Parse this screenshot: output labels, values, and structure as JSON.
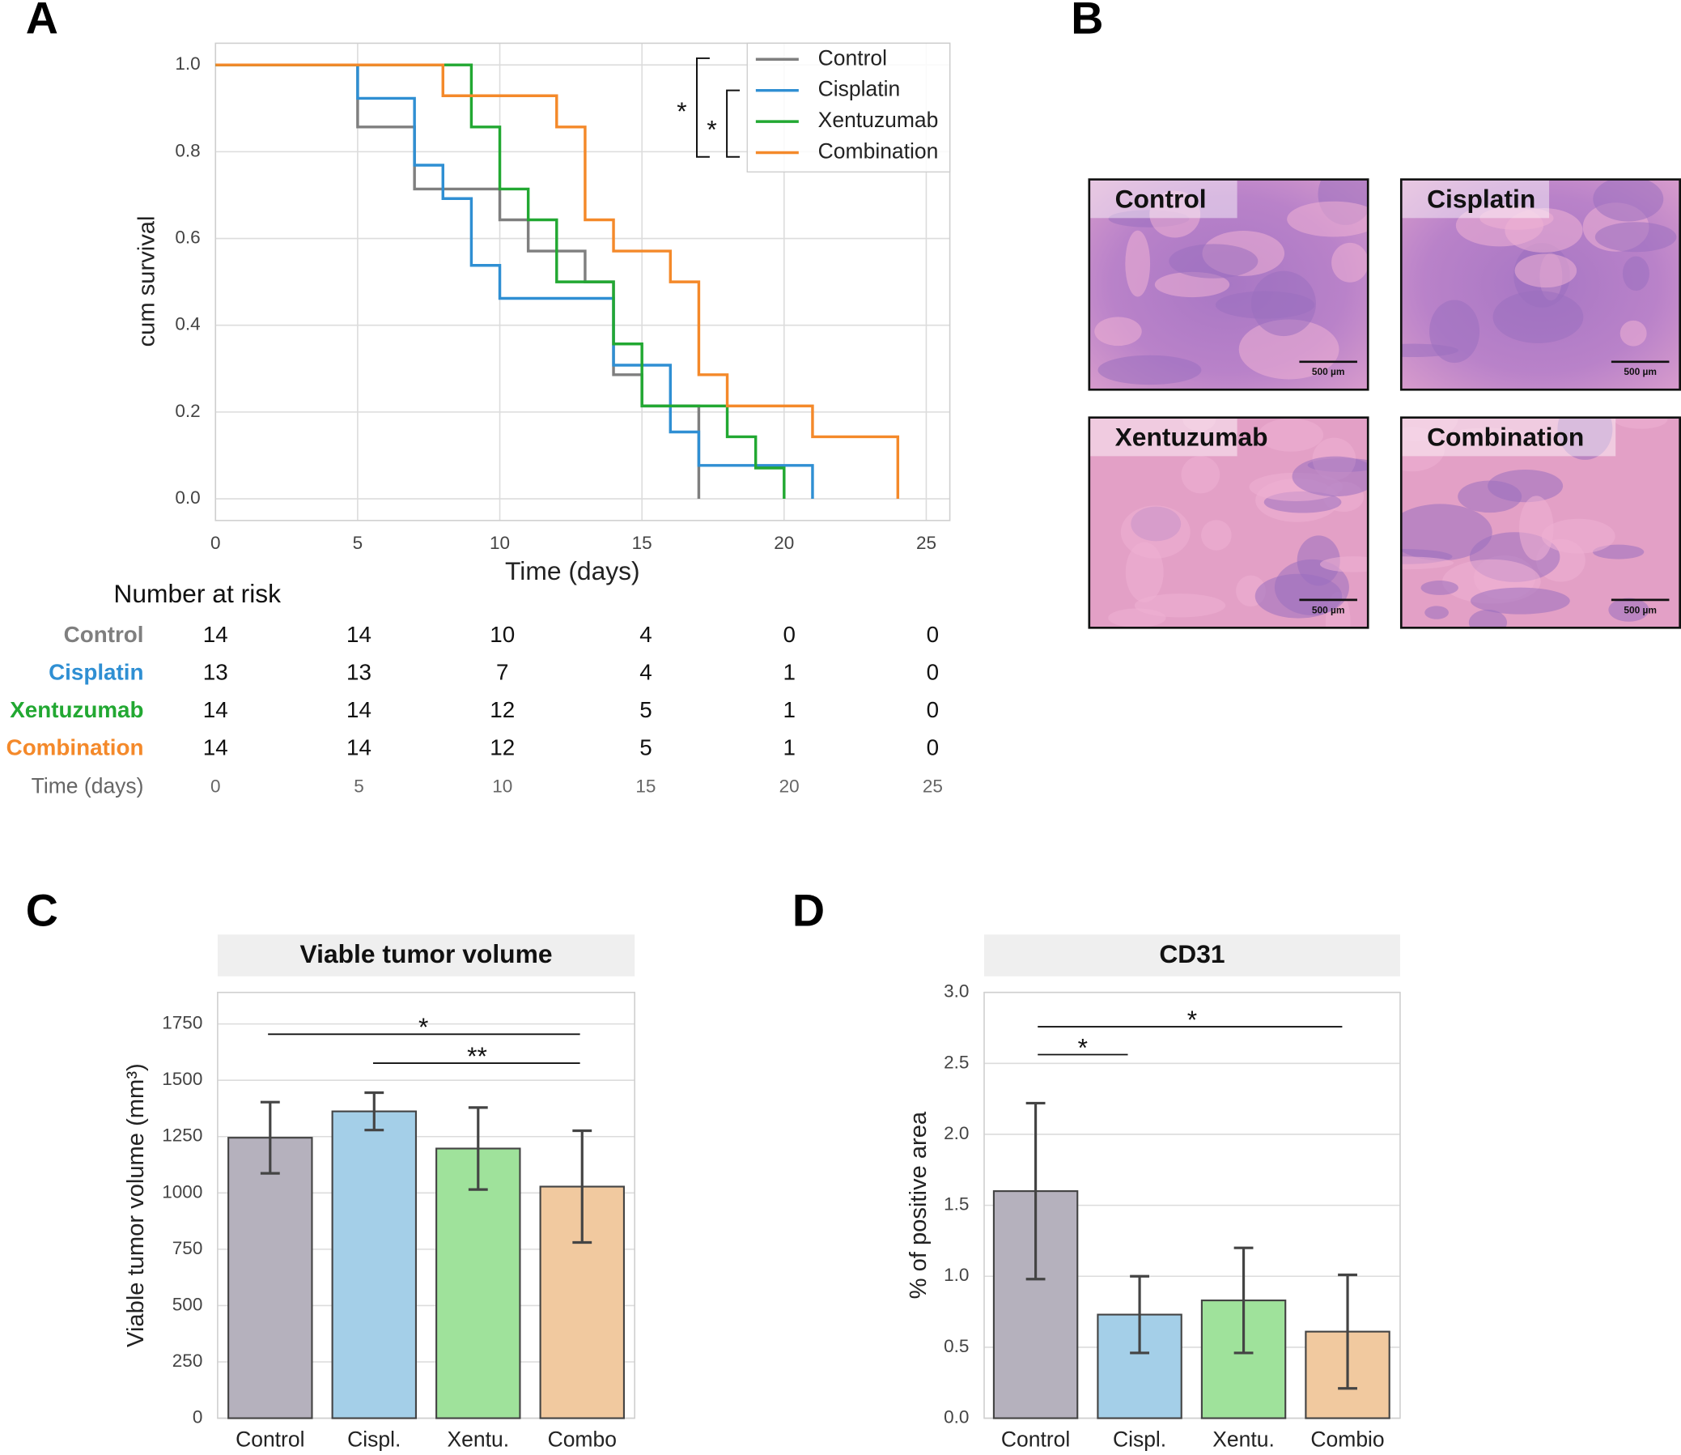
{
  "chart_data": [
    {
      "panel": "A",
      "type": "step",
      "xlabel": "Time (days)",
      "ylabel": "cum survival",
      "xlim": [
        0,
        25.83
      ],
      "ylim": [
        -0.05,
        1.05
      ],
      "xticks": [
        0,
        5,
        10,
        15,
        20,
        25
      ],
      "yticks": [
        {
          "value": 0,
          "label": "0.0"
        },
        {
          "value": 0.2,
          "label": "0.2"
        },
        {
          "value": 0.4,
          "label": "0.4"
        },
        {
          "value": 0.6,
          "label": "0.6"
        },
        {
          "value": 0.8,
          "label": "0.8"
        },
        {
          "value": 1,
          "label": "1.0"
        }
      ],
      "grid": true,
      "legend": "upper right",
      "annotations": [
        "*",
        "*"
      ],
      "risk_table_title": "Number at risk",
      "series": [
        {
          "name": "Control",
          "color": "#7f7f7f",
          "x": [
            0,
            5,
            7,
            10,
            11,
            13,
            14,
            15,
            17
          ],
          "values": [
            1,
            0.857,
            0.714,
            0.643,
            0.571,
            0.5,
            0.286,
            0.214,
            0
          ],
          "at_risk": [
            14,
            14,
            10,
            4,
            0,
            0
          ]
        },
        {
          "name": "Cisplatin",
          "color": "#2f8fd3",
          "x": [
            0,
            5,
            7,
            8,
            9,
            10,
            14,
            16,
            17,
            21
          ],
          "values": [
            1,
            0.923,
            0.769,
            0.692,
            0.538,
            0.462,
            0.308,
            0.154,
            0.077,
            0
          ],
          "at_risk": [
            13,
            13,
            7,
            4,
            1,
            0
          ]
        },
        {
          "name": "Xentuzumab",
          "color": "#22a832",
          "x": [
            0,
            9,
            10,
            11,
            12,
            14,
            15,
            18,
            19,
            20
          ],
          "values": [
            1,
            0.857,
            0.714,
            0.643,
            0.5,
            0.357,
            0.214,
            0.143,
            0.071,
            0
          ],
          "at_risk": [
            14,
            14,
            12,
            5,
            1,
            0
          ]
        },
        {
          "name": "Combination",
          "color": "#f4892a",
          "x": [
            0,
            8,
            12,
            13,
            14,
            16,
            17,
            18,
            21,
            24
          ],
          "values": [
            1,
            0.929,
            0.857,
            0.643,
            0.571,
            0.5,
            0.286,
            0.214,
            0.143,
            0
          ],
          "at_risk": [
            14,
            14,
            12,
            5,
            1,
            0
          ]
        }
      ]
    },
    {
      "panel": "C",
      "type": "bar",
      "title": "Viable tumor volume",
      "ylabel": "Viable tumor volume (mm³)",
      "categories": [
        "Control",
        "Cispl.",
        "Xentu.",
        "Combo"
      ],
      "values": [
        1245,
        1362,
        1197,
        1028
      ],
      "errors": [
        158,
        83,
        182,
        248
      ],
      "colors": [
        "#b5b1bd",
        "#a4cfe8",
        "#9fe29b",
        "#f1c99f"
      ],
      "ylim": [
        0,
        1890
      ],
      "yticks": [
        0,
        250,
        500,
        750,
        1000,
        1250,
        1500,
        1750
      ],
      "grid": true,
      "annotations": [
        "*",
        "**"
      ]
    },
    {
      "panel": "D",
      "type": "bar",
      "title": "CD31",
      "ylabel": "% of positive area",
      "categories": [
        "Control",
        "Cispl.",
        "Xentu.",
        "Combio"
      ],
      "values": [
        1.6,
        0.73,
        0.83,
        0.61
      ],
      "errors": [
        0.62,
        0.27,
        0.37,
        0.4
      ],
      "colors": [
        "#b5b1bd",
        "#a4cfe8",
        "#9fe29b",
        "#f1c99f"
      ],
      "ylim": [
        0,
        3
      ],
      "yticks": [
        {
          "value": 0,
          "label": "0.0"
        },
        {
          "value": 0.5,
          "label": "0.5"
        },
        {
          "value": 1,
          "label": "1.0"
        },
        {
          "value": 1.5,
          "label": "1.5"
        },
        {
          "value": 2,
          "label": "2.0"
        },
        {
          "value": 2.5,
          "label": "2.5"
        },
        {
          "value": 3,
          "label": "3.0"
        }
      ],
      "grid": true,
      "annotations": [
        "*",
        "*"
      ]
    }
  ],
  "panel_b": {
    "panel": "B",
    "labels": [
      "Control",
      "Cisplatin",
      "Xentuzumab",
      "Combination"
    ],
    "scale_bar": "500 µm"
  }
}
